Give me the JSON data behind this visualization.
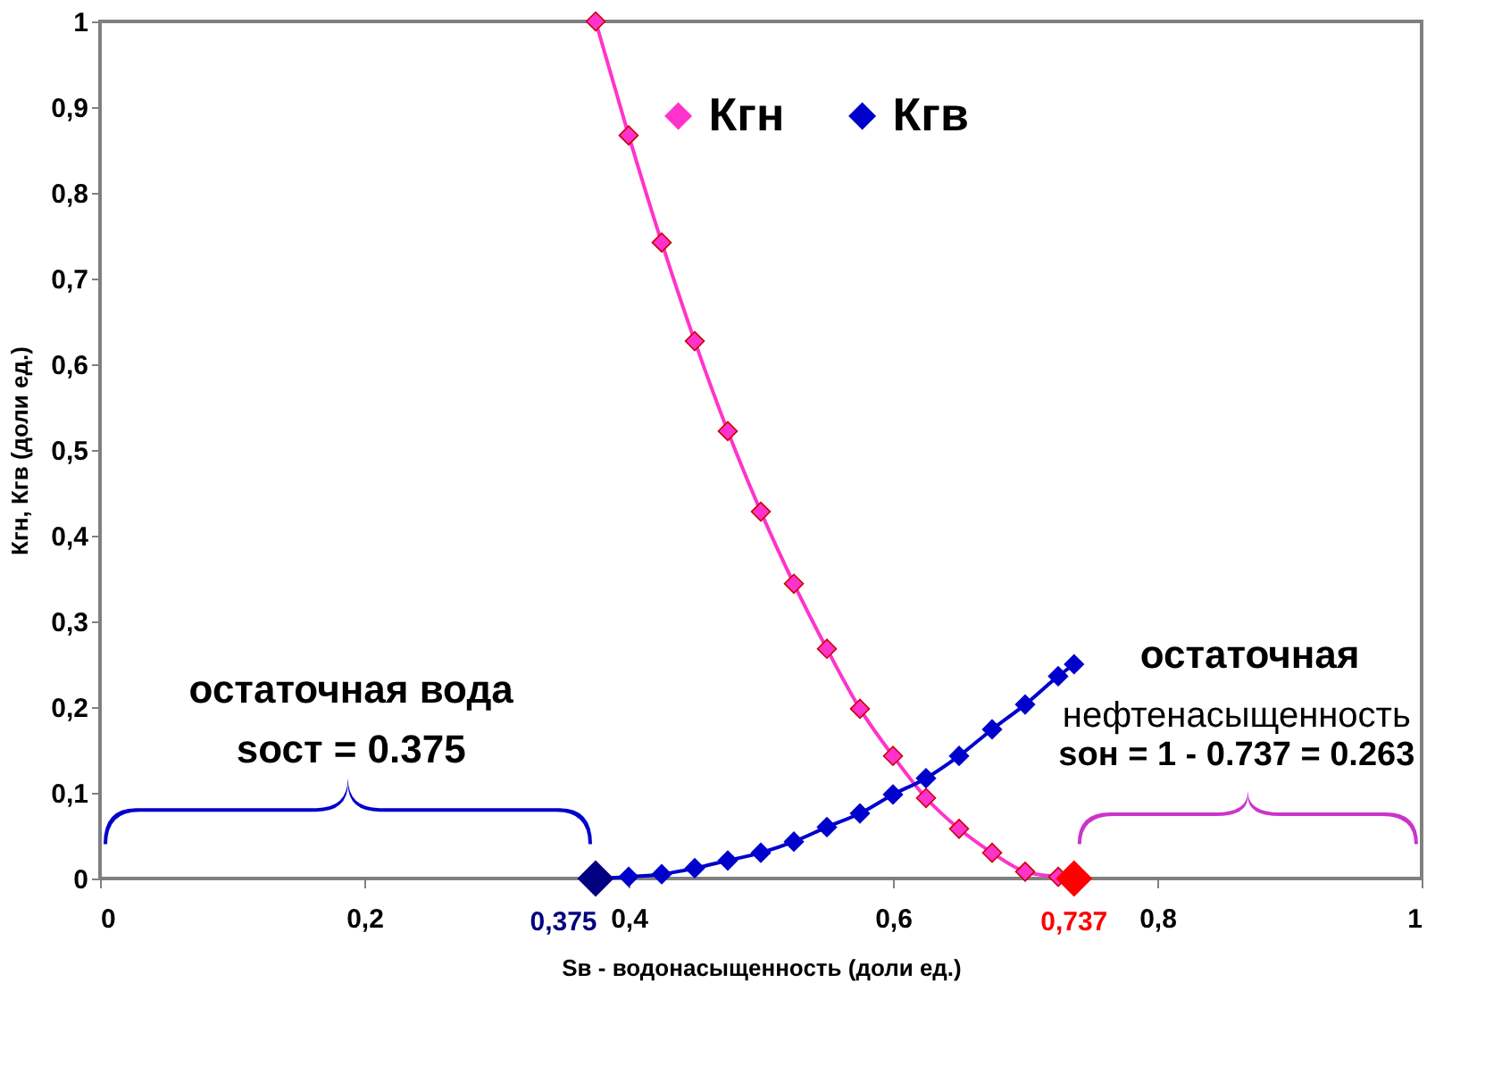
{
  "chart_data": {
    "type": "line",
    "xlabel": "Sв - водонасыщенность (доли ед.)",
    "ylabel": "Кгн, Кгв (доли ед.)",
    "x": [
      0.375,
      0.4,
      0.425,
      0.45,
      0.475,
      0.5,
      0.525,
      0.55,
      0.575,
      0.6,
      0.625,
      0.65,
      0.675,
      0.7,
      0.725,
      0.737
    ],
    "series": [
      {
        "name": "Кгн",
        "color": "#ff33cc",
        "values": [
          1,
          0.867,
          0.742,
          0.627,
          0.522,
          0.428,
          0.344,
          0.268,
          0.198,
          0.143,
          0.094,
          0.058,
          0.03,
          0.008,
          0.002,
          0
        ]
      },
      {
        "name": "Кгв",
        "color": "#0000cc",
        "values": [
          0,
          0.002,
          0.005,
          0.012,
          0.021,
          0.03,
          0.043,
          0.06,
          0.076,
          0.098,
          0.117,
          0.143,
          0.174,
          0.203,
          0.236,
          0.25
        ]
      },
      {
        "type": "scatter",
        "color": "#000080",
        "x": [
          0.375
        ],
        "values": [
          0
        ]
      },
      {
        "type": "scatter",
        "color": "#ff0000",
        "x": [
          0.737
        ],
        "values": [
          0
        ]
      }
    ],
    "xlim": [
      0,
      1
    ],
    "ylim": [
      0,
      1
    ],
    "xticks": [
      0,
      {
        "value": 0.2,
        "label": "0,2"
      },
      {
        "value": 0.4,
        "label": "0,4"
      },
      {
        "value": 0.6,
        "label": "0,6"
      },
      {
        "value": 0.8,
        "label": "0,8"
      },
      1
    ],
    "yticks": [
      0,
      {
        "value": 0.1,
        "label": "0,1"
      },
      {
        "value": 0.2,
        "label": "0,2"
      },
      {
        "value": 0.3,
        "label": "0,3"
      },
      {
        "value": 0.4,
        "label": "0,4"
      },
      {
        "value": 0.5,
        "label": "0,5"
      },
      {
        "value": 0.6,
        "label": "0,6"
      },
      {
        "value": 0.7,
        "label": "0,7"
      },
      {
        "value": 0.8,
        "label": "0,8"
      },
      {
        "value": 0.9,
        "label": "0,9"
      },
      1
    ],
    "annotations": [
      {
        "text": "0,375",
        "x": 0.375,
        "y": 0
      },
      {
        "text": "0,737",
        "x": 0.737,
        "y": 0
      },
      "остаточная вода",
      "sост = 0.375",
      "остаточная",
      "нефтенасыщенность",
      "sон = 1 - 0.737 = 0.263"
    ],
    "grid": false,
    "legend": "top",
    "marker": "diamond",
    "line_style": "solid"
  }
}
